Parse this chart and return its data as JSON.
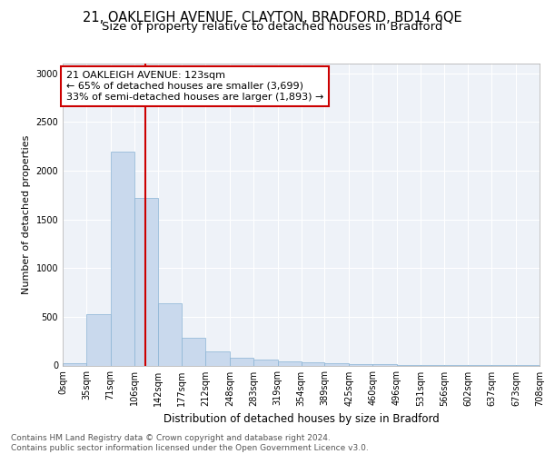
{
  "title1": "21, OAKLEIGH AVENUE, CLAYTON, BRADFORD, BD14 6QE",
  "title2": "Size of property relative to detached houses in Bradford",
  "xlabel": "Distribution of detached houses by size in Bradford",
  "ylabel": "Number of detached properties",
  "bar_color": "#c9d9ed",
  "bar_edge_color": "#8ab4d4",
  "vline_color": "#cc0000",
  "vline_x": 123,
  "annotation_text": "21 OAKLEIGH AVENUE: 123sqm\n← 65% of detached houses are smaller (3,699)\n33% of semi-detached houses are larger (1,893) →",
  "annotation_box_color": "white",
  "annotation_box_edge_color": "#cc0000",
  "bin_edges": [
    0,
    35,
    71,
    106,
    142,
    177,
    212,
    248,
    283,
    319,
    354,
    389,
    425,
    460,
    496,
    531,
    566,
    602,
    637,
    673,
    708
  ],
  "bar_heights": [
    25,
    530,
    2195,
    1720,
    635,
    285,
    145,
    75,
    65,
    45,
    30,
    20,
    15,
    10,
    5,
    3,
    2,
    1,
    1,
    1
  ],
  "ylim": [
    0,
    3100
  ],
  "yticks": [
    0,
    500,
    1000,
    1500,
    2000,
    2500,
    3000
  ],
  "background_color": "#eef2f8",
  "grid_color": "white",
  "footer_text": "Contains HM Land Registry data © Crown copyright and database right 2024.\nContains public sector information licensed under the Open Government Licence v3.0.",
  "title1_fontsize": 10.5,
  "title2_fontsize": 9.5,
  "xlabel_fontsize": 8.5,
  "ylabel_fontsize": 8,
  "tick_fontsize": 7,
  "annotation_fontsize": 8,
  "footer_fontsize": 6.5
}
